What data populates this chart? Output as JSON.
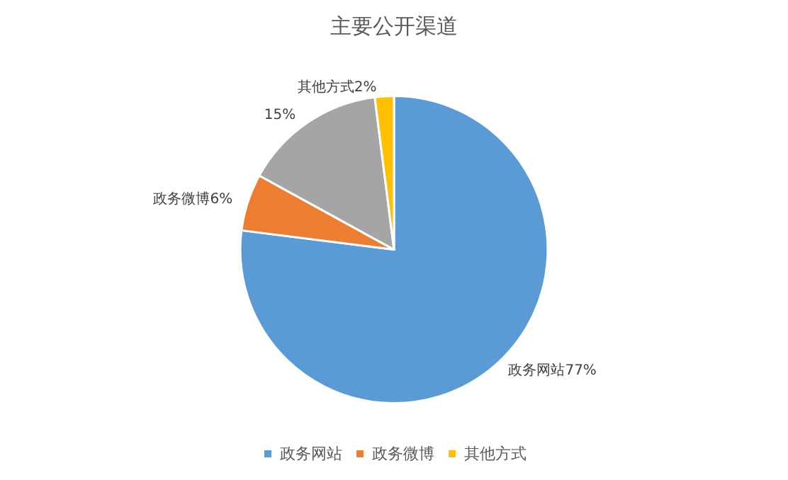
{
  "chart_data": {
    "type": "pie",
    "title": "主要公开渠道",
    "categories": [
      "政务网站",
      "政务微博",
      null,
      "其他方式"
    ],
    "values": [
      77,
      6,
      15,
      2
    ],
    "value_labels": [
      "政务网站77%",
      "政务微博6%",
      "15%",
      "其他方式2%"
    ],
    "colors": [
      "#5b9bd5",
      "#ed7d31",
      "#a5a5a5",
      "#ffc000"
    ],
    "legend": "bottom"
  }
}
